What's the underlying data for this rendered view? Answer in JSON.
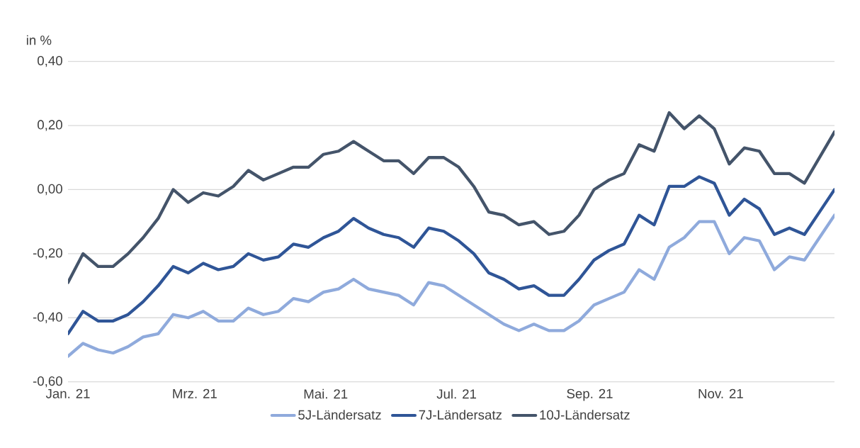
{
  "chart_data": {
    "type": "line",
    "ylabel": "in %",
    "x": [
      "2021-01-01",
      "2021-01-08",
      "2021-01-15",
      "2021-01-22",
      "2021-01-29",
      "2021-02-05",
      "2021-02-12",
      "2021-02-19",
      "2021-02-26",
      "2021-03-05",
      "2021-03-12",
      "2021-03-19",
      "2021-03-26",
      "2021-04-02",
      "2021-04-09",
      "2021-04-16",
      "2021-04-23",
      "2021-04-30",
      "2021-05-07",
      "2021-05-14",
      "2021-05-21",
      "2021-05-28",
      "2021-06-04",
      "2021-06-11",
      "2021-06-18",
      "2021-06-25",
      "2021-07-02",
      "2021-07-09",
      "2021-07-16",
      "2021-07-23",
      "2021-07-30",
      "2021-08-06",
      "2021-08-13",
      "2021-08-20",
      "2021-08-27",
      "2021-09-03",
      "2021-09-10",
      "2021-09-17",
      "2021-09-24",
      "2021-10-01",
      "2021-10-08",
      "2021-10-15",
      "2021-10-22",
      "2021-10-29",
      "2021-11-05",
      "2021-11-12",
      "2021-11-19",
      "2021-11-26",
      "2021-12-03",
      "2021-12-10",
      "2021-12-17",
      "2021-12-24"
    ],
    "series": [
      {
        "name": "5J-Ländersatz",
        "color": "#8faadc",
        "values": [
          -0.52,
          -0.48,
          -0.5,
          -0.51,
          -0.49,
          -0.46,
          -0.45,
          -0.39,
          -0.4,
          -0.38,
          -0.41,
          -0.41,
          -0.37,
          -0.39,
          -0.38,
          -0.34,
          -0.35,
          -0.32,
          -0.31,
          -0.28,
          -0.31,
          -0.32,
          -0.33,
          -0.36,
          -0.29,
          -0.3,
          -0.33,
          -0.36,
          -0.39,
          -0.42,
          -0.44,
          -0.42,
          -0.44,
          -0.44,
          -0.41,
          -0.36,
          -0.34,
          -0.32,
          -0.25,
          -0.28,
          -0.18,
          -0.15,
          -0.1,
          -0.1,
          -0.2,
          -0.15,
          -0.16,
          -0.25,
          -0.21,
          -0.22,
          -0.15,
          -0.08
        ]
      },
      {
        "name": "7J-Ländersatz",
        "color": "#2f5597",
        "values": [
          -0.45,
          -0.38,
          -0.41,
          -0.41,
          -0.39,
          -0.35,
          -0.3,
          -0.24,
          -0.26,
          -0.23,
          -0.25,
          -0.24,
          -0.2,
          -0.22,
          -0.21,
          -0.17,
          -0.18,
          -0.15,
          -0.13,
          -0.09,
          -0.12,
          -0.14,
          -0.15,
          -0.18,
          -0.12,
          -0.13,
          -0.16,
          -0.2,
          -0.26,
          -0.28,
          -0.31,
          -0.3,
          -0.33,
          -0.33,
          -0.28,
          -0.22,
          -0.19,
          -0.17,
          -0.08,
          -0.11,
          0.01,
          0.01,
          0.04,
          0.02,
          -0.08,
          -0.03,
          -0.06,
          -0.14,
          -0.12,
          -0.14,
          -0.07,
          0.0
        ]
      },
      {
        "name": "10J-Ländersatz",
        "color": "#44546a",
        "values": [
          -0.29,
          -0.2,
          -0.24,
          -0.24,
          -0.2,
          -0.15,
          -0.09,
          0.0,
          -0.04,
          -0.01,
          -0.02,
          0.01,
          0.06,
          0.03,
          0.05,
          0.07,
          0.07,
          0.11,
          0.12,
          0.15,
          0.12,
          0.09,
          0.09,
          0.05,
          0.1,
          0.1,
          0.07,
          0.01,
          -0.07,
          -0.08,
          -0.11,
          -0.1,
          -0.14,
          -0.13,
          -0.08,
          0.0,
          0.03,
          0.05,
          0.14,
          0.12,
          0.24,
          0.19,
          0.23,
          0.19,
          0.08,
          0.13,
          0.12,
          0.05,
          0.05,
          0.02,
          0.1,
          0.18
        ]
      }
    ],
    "xlim": [
      "2021-01-01",
      "2021-12-24"
    ],
    "xticks": [
      {
        "value": "2021-01-01",
        "label": "Jan. 21"
      },
      {
        "value": "2021-03-01",
        "label": "Mrz. 21"
      },
      {
        "value": "2021-05-01",
        "label": "Mai. 21"
      },
      {
        "value": "2021-07-01",
        "label": "Jul. 21"
      },
      {
        "value": "2021-09-01",
        "label": "Sep. 21"
      },
      {
        "value": "2021-11-01",
        "label": "Nov. 21"
      }
    ],
    "ylim": [
      -0.6,
      0.4
    ],
    "yticks": [
      {
        "value": -0.6,
        "label": "-0,60"
      },
      {
        "value": -0.4,
        "label": "-0,40"
      },
      {
        "value": -0.2,
        "label": "-0,20"
      },
      {
        "value": 0,
        "label": "0,00"
      },
      {
        "value": 0.2,
        "label": "0,20"
      },
      {
        "value": 0.4,
        "label": "0,40"
      }
    ],
    "grid": "y",
    "legend": "bottom",
    "marker": "none",
    "line_style": "solid"
  }
}
